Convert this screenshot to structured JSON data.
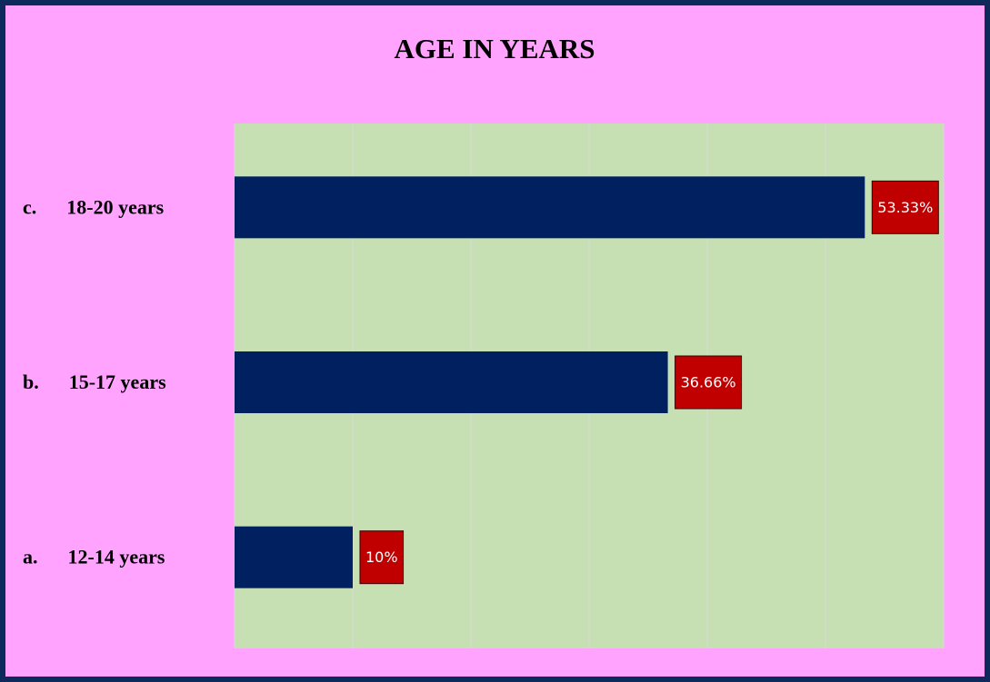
{
  "chart_data": {
    "type": "hbar",
    "title": "AGE IN YEARS",
    "categories": [
      "a.      12-14 years",
      "b.      15-17 years",
      "c.      18-20 years"
    ],
    "values": [
      10,
      36.66,
      53.33
    ],
    "value_labels": [
      "10%",
      "36.66%",
      "53.33%"
    ],
    "color": "#002060",
    "label_color": "#c00000",
    "xlim": [
      0,
      60
    ],
    "xticks": [
      0,
      10,
      20,
      30,
      40,
      50,
      60
    ],
    "grid": true
  }
}
